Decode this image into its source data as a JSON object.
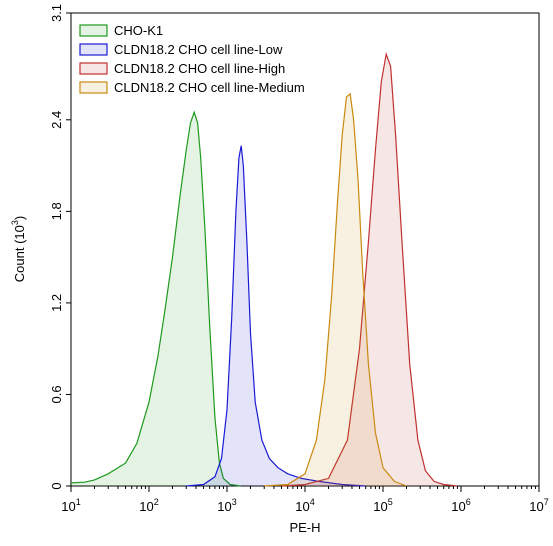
{
  "chart_data": {
    "type": "area",
    "title": "",
    "xlabel": "PE-H",
    "ylabel_base": "Count (10",
    "ylabel_exp": "3",
    "ylabel_end": ")",
    "x_scale": "log",
    "xlim": [
      10,
      10000000
    ],
    "ylim": [
      0,
      3.1
    ],
    "x_ticks": [
      {
        "value": 10,
        "base": "10",
        "exp": "1"
      },
      {
        "value": 100,
        "base": "10",
        "exp": "2"
      },
      {
        "value": 1000,
        "base": "10",
        "exp": "3"
      },
      {
        "value": 10000,
        "base": "10",
        "exp": "4"
      },
      {
        "value": 100000,
        "base": "10",
        "exp": "5"
      },
      {
        "value": 1000000,
        "base": "10",
        "exp": "6"
      },
      {
        "value": 10000000,
        "base": "10",
        "exp": "7"
      }
    ],
    "y_ticks": [
      {
        "value": 0,
        "label": "0"
      },
      {
        "value": 0.6,
        "label": "0.6"
      },
      {
        "value": 1.2,
        "label": "1.2"
      },
      {
        "value": 1.8,
        "label": "1.8"
      },
      {
        "value": 2.4,
        "label": "2.4"
      },
      {
        "value": 3.1,
        "label": "3.1"
      }
    ],
    "grid": false,
    "legend_position": "top-left",
    "series": [
      {
        "name": "CHO-K1",
        "stroke": "#1e9a1e",
        "fill": "#1e9a1e",
        "points": [
          [
            10,
            0.02
          ],
          [
            15,
            0.025
          ],
          [
            20,
            0.04
          ],
          [
            30,
            0.08
          ],
          [
            50,
            0.15
          ],
          [
            70,
            0.28
          ],
          [
            100,
            0.55
          ],
          [
            130,
            0.85
          ],
          [
            160,
            1.15
          ],
          [
            200,
            1.5
          ],
          [
            250,
            1.9
          ],
          [
            300,
            2.2
          ],
          [
            340,
            2.38
          ],
          [
            380,
            2.45
          ],
          [
            420,
            2.38
          ],
          [
            460,
            2.15
          ],
          [
            520,
            1.7
          ],
          [
            600,
            1.05
          ],
          [
            700,
            0.45
          ],
          [
            800,
            0.15
          ],
          [
            900,
            0.05
          ],
          [
            1100,
            0.01
          ],
          [
            1500,
            0
          ]
        ]
      },
      {
        "name": "CLDN18.2 CHO cell line-Low",
        "stroke": "#1a1ad6",
        "fill": "#1a1ad6",
        "points": [
          [
            300,
            0
          ],
          [
            500,
            0.01
          ],
          [
            700,
            0.06
          ],
          [
            850,
            0.18
          ],
          [
            1000,
            0.5
          ],
          [
            1150,
            1.1
          ],
          [
            1300,
            1.8
          ],
          [
            1420,
            2.15
          ],
          [
            1520,
            2.23
          ],
          [
            1620,
            2.1
          ],
          [
            1800,
            1.6
          ],
          [
            2000,
            1.0
          ],
          [
            2300,
            0.55
          ],
          [
            2800,
            0.3
          ],
          [
            3500,
            0.18
          ],
          [
            4500,
            0.12
          ],
          [
            6000,
            0.08
          ],
          [
            9000,
            0.05
          ],
          [
            15000,
            0.03
          ],
          [
            30000,
            0.01
          ],
          [
            60000,
            0
          ]
        ]
      },
      {
        "name": "CLDN18.2 CHO cell line-High",
        "stroke": "#c03030",
        "fill": "#c03030",
        "points": [
          [
            5000,
            0
          ],
          [
            10000,
            0.01
          ],
          [
            20000,
            0.05
          ],
          [
            35000,
            0.3
          ],
          [
            50000,
            0.9
          ],
          [
            65000,
            1.6
          ],
          [
            80000,
            2.2
          ],
          [
            95000,
            2.65
          ],
          [
            110000,
            2.83
          ],
          [
            125000,
            2.75
          ],
          [
            145000,
            2.3
          ],
          [
            175000,
            1.6
          ],
          [
            220000,
            0.8
          ],
          [
            280000,
            0.3
          ],
          [
            350000,
            0.1
          ],
          [
            450000,
            0.03
          ],
          [
            600000,
            0.01
          ],
          [
            900000,
            0
          ]
        ]
      },
      {
        "name": "CLDN18.2 CHO cell line-Medium",
        "stroke": "#c98a10",
        "fill": "#c98a10",
        "points": [
          [
            3000,
            0
          ],
          [
            6000,
            0.01
          ],
          [
            10000,
            0.08
          ],
          [
            14000,
            0.3
          ],
          [
            18000,
            0.7
          ],
          [
            22000,
            1.25
          ],
          [
            26000,
            1.85
          ],
          [
            30000,
            2.3
          ],
          [
            34000,
            2.55
          ],
          [
            38000,
            2.57
          ],
          [
            42000,
            2.4
          ],
          [
            48000,
            2.0
          ],
          [
            55000,
            1.4
          ],
          [
            65000,
            0.8
          ],
          [
            80000,
            0.35
          ],
          [
            100000,
            0.12
          ],
          [
            140000,
            0.03
          ],
          [
            200000,
            0
          ]
        ]
      }
    ]
  }
}
